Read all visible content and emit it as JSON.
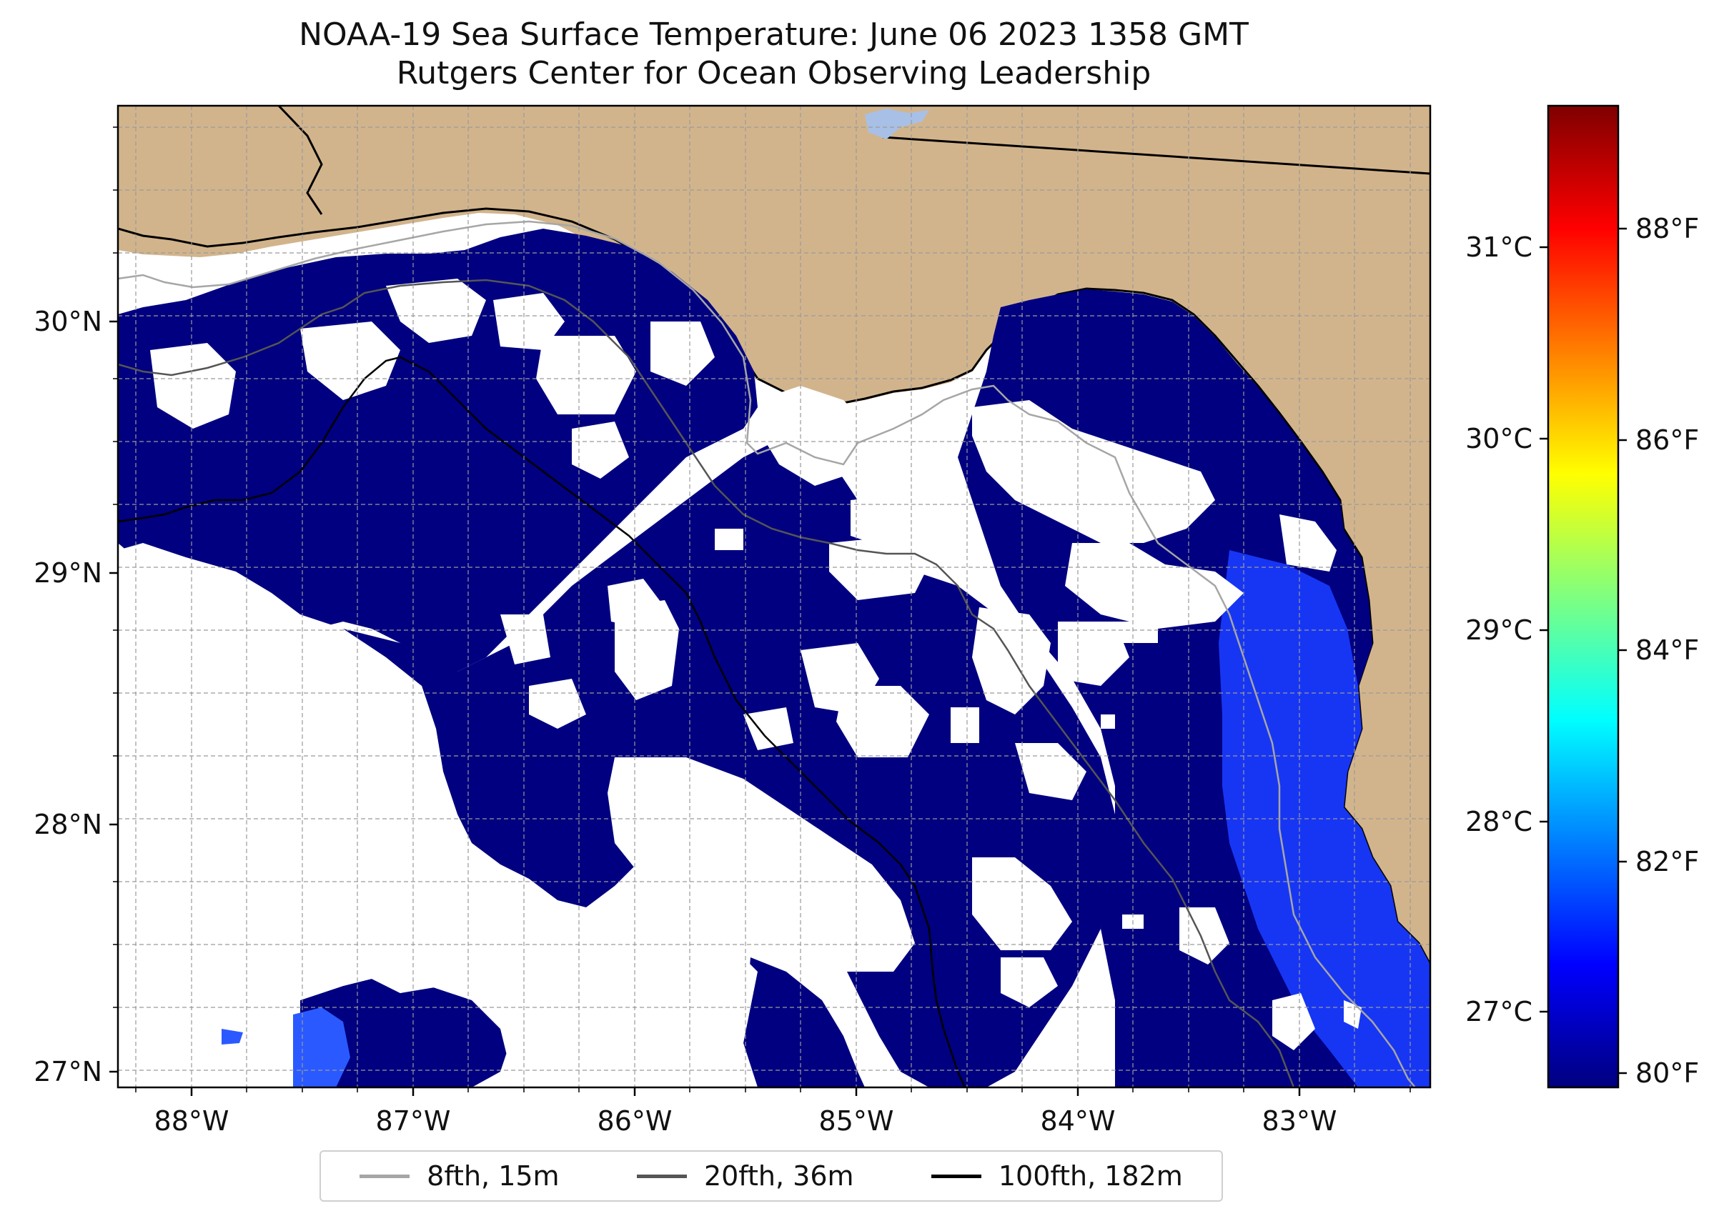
{
  "title": {
    "line1": "NOAA-19 Sea Surface Temperature: June 06 2023 1358 GMT",
    "line2": "Rutgers Center for Ocean Observing Leadership"
  },
  "axes": {
    "x_ticks": [
      "88°W",
      "87°W",
      "86°W",
      "85°W",
      "84°W",
      "83°W"
    ],
    "y_ticks": [
      "30°N",
      "29°N",
      "28°N",
      "27°N"
    ]
  },
  "colorbar": {
    "celsius_ticks": [
      "31°C",
      "30°C",
      "29°C",
      "28°C",
      "27°C"
    ],
    "fahrenheit_ticks": [
      "88°F",
      "86°F",
      "84°F",
      "82°F",
      "80°F"
    ],
    "colors": [
      "#00007f",
      "#0000ff",
      "#007fff",
      "#00ffff",
      "#7fff7f",
      "#ffff00",
      "#ff7f00",
      "#ff0000",
      "#7f0000"
    ]
  },
  "legend": {
    "items": [
      {
        "label": "8fth, 15m",
        "color": "#a6a6a6"
      },
      {
        "label": "20fth, 36m",
        "color": "#555555"
      },
      {
        "label": "100fth, 182m",
        "color": "#000000"
      }
    ]
  },
  "colors": {
    "land": "#d2b48c",
    "water_sst": "#000080",
    "cloud_mask": "#ffffff",
    "warm_water": "#1a3cff"
  }
}
